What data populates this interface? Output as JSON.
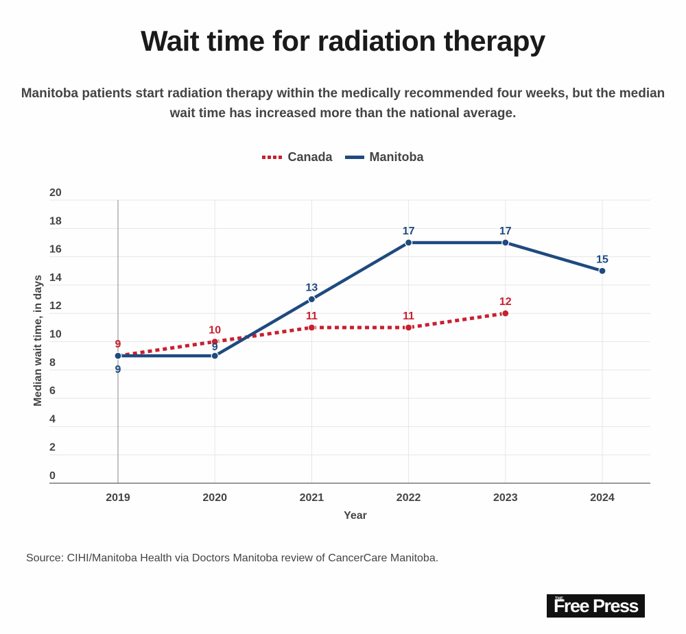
{
  "header": {
    "title": "Wait time for radiation therapy",
    "subtitle": "Manitoba patients start radiation therapy within the medically recommended four weeks, but the median wait time has increased more than the national average."
  },
  "legend": {
    "items": [
      {
        "label": "Canada",
        "style": "dotted",
        "color": "#c8202f"
      },
      {
        "label": "Manitoba",
        "style": "solid",
        "color": "#1e4a7f"
      }
    ]
  },
  "footer": {
    "source": "Source: CIHI/Manitoba Health via Doctors Manitoba review of CancerCare Manitoba.",
    "logo_small": "THE",
    "logo_text": "Free Press"
  },
  "chart_data": {
    "type": "line",
    "title": "Wait time for radiation therapy",
    "xlabel": "Year",
    "ylabel": "Median wait time, in days",
    "categories": [
      "2019",
      "2020",
      "2021",
      "2022",
      "2023",
      "2024"
    ],
    "ylim": [
      0,
      20
    ],
    "yticks": [
      0,
      2,
      4,
      6,
      8,
      10,
      12,
      14,
      16,
      18,
      20
    ],
    "grid": true,
    "legend_position": "top-center",
    "series": [
      {
        "name": "Canada",
        "color": "#c8202f",
        "style": "dotted",
        "values": [
          9,
          10,
          11,
          11,
          12,
          null
        ]
      },
      {
        "name": "Manitoba",
        "color": "#1e4a7f",
        "style": "solid",
        "values": [
          9,
          9,
          13,
          17,
          17,
          15
        ]
      }
    ]
  }
}
